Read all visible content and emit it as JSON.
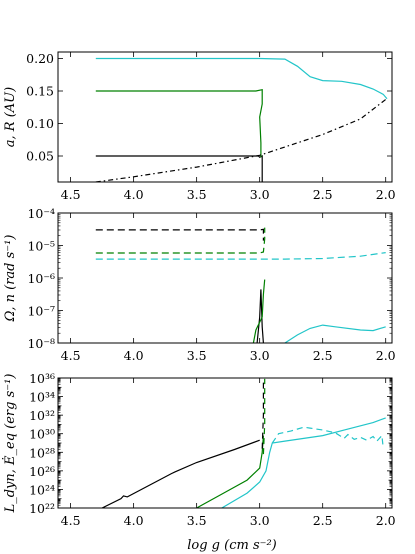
{
  "colors": {
    "black": "#000000",
    "green": "#008000",
    "cyan": "#22c5c9"
  },
  "xlabel": "log g (cm s⁻²)",
  "chart_data": [
    {
      "type": "line",
      "ylabel": "a, R (AU)",
      "xlim": [
        4.6,
        1.95
      ],
      "ylim": [
        0.01,
        0.21
      ],
      "yscale": "linear",
      "x_ticks": [
        "4.5",
        "4.0",
        "3.5",
        "3.0",
        "2.5",
        "2.0"
      ],
      "y_ticks": [
        "0.05",
        "0.10",
        "0.15",
        "0.20"
      ],
      "series": [
        {
          "color": "black",
          "dash": "",
          "points": [
            [
              4.3,
              0.05
            ],
            [
              3.01,
              0.05
            ],
            [
              3.0,
              0.048
            ],
            [
              2.98,
              0.05
            ],
            [
              2.98,
              0.0
            ]
          ]
        },
        {
          "color": "green",
          "dash": "",
          "points": [
            [
              4.3,
              0.15
            ],
            [
              3.03,
              0.15
            ],
            [
              2.98,
              0.152
            ],
            [
              2.98,
              0.13
            ],
            [
              3.0,
              0.11
            ],
            [
              2.99,
              0.07
            ],
            [
              2.99,
              0.048
            ]
          ]
        },
        {
          "color": "cyan",
          "dash": "",
          "points": [
            [
              4.3,
              0.2
            ],
            [
              3.0,
              0.2
            ],
            [
              2.8,
              0.199
            ],
            [
              2.7,
              0.188
            ],
            [
              2.6,
              0.172
            ],
            [
              2.5,
              0.166
            ],
            [
              2.35,
              0.165
            ],
            [
              2.2,
              0.16
            ],
            [
              2.1,
              0.153
            ],
            [
              2.02,
              0.145
            ],
            [
              1.99,
              0.138
            ]
          ]
        },
        {
          "color": "black",
          "dash": "5,3,1.5,3",
          "points": [
            [
              4.3,
              0.01
            ],
            [
              4.0,
              0.018
            ],
            [
              3.5,
              0.033
            ],
            [
              3.0,
              0.051
            ],
            [
              2.5,
              0.083
            ],
            [
              2.2,
              0.107
            ],
            [
              2.0,
              0.137
            ]
          ]
        }
      ]
    },
    {
      "type": "line",
      "ylabel": "Ω, n (rad s⁻¹)",
      "xlim": [
        4.6,
        1.95
      ],
      "ylim": [
        -8,
        -4
      ],
      "yscale": "log",
      "x_ticks": [
        "4.5",
        "4.0",
        "3.5",
        "3.0",
        "2.5",
        "2.0"
      ],
      "y_ticks": [
        "10⁻⁸",
        "10⁻⁷",
        "10⁻⁶",
        "10⁻⁵",
        "10⁻⁴"
      ],
      "series": [
        {
          "color": "black",
          "dash": "7,4",
          "points": [
            [
              4.3,
              -4.52
            ],
            [
              3.0,
              -4.52
            ],
            [
              2.97,
              -4.5
            ],
            [
              2.97,
              -4.85
            ]
          ]
        },
        {
          "color": "green",
          "dash": "7,4",
          "points": [
            [
              4.3,
              -5.23
            ],
            [
              3.0,
              -5.23
            ],
            [
              2.97,
              -5.2
            ],
            [
              2.96,
              -4.8
            ],
            [
              2.96,
              -4.45
            ]
          ]
        },
        {
          "color": "cyan",
          "dash": "7,4",
          "points": [
            [
              4.3,
              -5.42
            ],
            [
              3.0,
              -5.42
            ],
            [
              2.8,
              -5.42
            ],
            [
              2.5,
              -5.4
            ],
            [
              2.2,
              -5.33
            ],
            [
              2.0,
              -5.22
            ]
          ]
        },
        {
          "color": "black",
          "dash": "",
          "points": [
            [
              3.02,
              -8.0
            ],
            [
              3.0,
              -7.2
            ],
            [
              2.99,
              -6.35
            ],
            [
              2.98,
              -7.5
            ],
            [
              2.97,
              -8.0
            ]
          ]
        },
        {
          "color": "green",
          "dash": "",
          "points": [
            [
              3.05,
              -8.0
            ],
            [
              3.03,
              -7.6
            ],
            [
              2.98,
              -7.2
            ],
            [
              2.97,
              -6.5
            ],
            [
              2.96,
              -6.05
            ]
          ]
        },
        {
          "color": "cyan",
          "dash": "",
          "points": [
            [
              2.8,
              -8.0
            ],
            [
              2.7,
              -7.75
            ],
            [
              2.6,
              -7.55
            ],
            [
              2.5,
              -7.45
            ],
            [
              2.4,
              -7.5
            ],
            [
              2.2,
              -7.6
            ],
            [
              2.1,
              -7.62
            ],
            [
              2.0,
              -7.5
            ]
          ]
        }
      ]
    },
    {
      "type": "line",
      "ylabel": "L_dyn, Ė_eq (erg s⁻¹)",
      "xlim": [
        4.6,
        1.95
      ],
      "ylim": [
        22,
        36
      ],
      "yscale": "log",
      "x_ticks": [
        "4.5",
        "4.0",
        "3.5",
        "3.0",
        "2.5",
        "2.0"
      ],
      "y_ticks": [
        "10²²",
        "10²⁴",
        "10²⁶",
        "10²⁸",
        "10³⁰",
        "10³²",
        "10³⁴",
        "10³⁶"
      ],
      "series": [
        {
          "color": "black",
          "dash": "",
          "points": [
            [
              4.25,
              22.0
            ],
            [
              4.1,
              23.0
            ],
            [
              4.08,
              23.3
            ],
            [
              4.05,
              23.2
            ],
            [
              3.7,
              25.7
            ],
            [
              3.67,
              25.9
            ],
            [
              3.5,
              26.9
            ],
            [
              3.2,
              28.3
            ],
            [
              3.0,
              29.3
            ]
          ]
        },
        {
          "color": "green",
          "dash": "",
          "points": [
            [
              3.5,
              22.0
            ],
            [
              3.3,
              23.5
            ],
            [
              3.1,
              25.0
            ],
            [
              3.0,
              26.3
            ],
            [
              2.98,
              28.0
            ],
            [
              2.97,
              29.8
            ]
          ]
        },
        {
          "color": "cyan",
          "dash": "",
          "points": [
            [
              3.3,
              22.0
            ],
            [
              3.1,
              23.6
            ],
            [
              3.0,
              24.8
            ],
            [
              2.95,
              26.0
            ],
            [
              2.92,
              28.0
            ],
            [
              2.9,
              29.0
            ],
            [
              2.8,
              29.2
            ],
            [
              2.5,
              29.8
            ],
            [
              2.3,
              30.5
            ],
            [
              2.1,
              31.2
            ],
            [
              2.0,
              31.7
            ]
          ]
        },
        {
          "color": "black",
          "dash": "6,4",
          "points": [
            [
              2.98,
              28.4
            ],
            [
              2.97,
              32.0
            ],
            [
              2.97,
              35.8
            ]
          ]
        },
        {
          "color": "green",
          "dash": "6,4",
          "points": [
            [
              2.97,
              27.8
            ],
            [
              2.96,
              31.0
            ],
            [
              2.96,
              35.9
            ]
          ]
        },
        {
          "color": "cyan",
          "dash": "6,4",
          "points": [
            [
              2.9,
              29.0
            ],
            [
              2.85,
              30.0
            ],
            [
              2.75,
              30.3
            ],
            [
              2.65,
              30.7
            ],
            [
              2.6,
              30.6
            ],
            [
              2.5,
              30.4
            ],
            [
              2.4,
              30.1
            ],
            [
              2.33,
              29.5
            ],
            [
              2.3,
              29.9
            ],
            [
              2.25,
              29.4
            ],
            [
              2.2,
              29.6
            ],
            [
              2.15,
              29.3
            ],
            [
              2.1,
              29.7
            ],
            [
              2.07,
              29.2
            ],
            [
              2.03,
              29.8
            ],
            [
              2.02,
              28.5
            ]
          ]
        }
      ]
    }
  ]
}
